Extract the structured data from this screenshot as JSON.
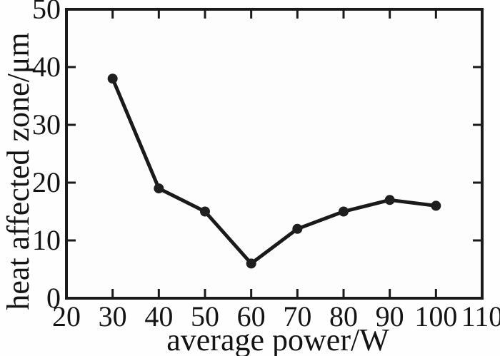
{
  "chart_data": {
    "type": "line",
    "series_name": "heat affected zone",
    "x": [
      30,
      40,
      50,
      60,
      70,
      80,
      90,
      100
    ],
    "values": [
      38,
      19,
      15,
      6,
      12,
      15,
      17,
      16
    ],
    "title": "",
    "xlabel": "average power/W",
    "ylabel": "heat affected zone/μm",
    "xlim": [
      20,
      110
    ],
    "ylim": [
      0,
      50
    ],
    "xticks": [
      20,
      30,
      40,
      50,
      60,
      70,
      80,
      90,
      100,
      110
    ],
    "yticks": [
      0,
      10,
      20,
      30,
      40,
      50
    ],
    "grid": false,
    "legend_position": "none",
    "line_color": "#1a1a1a",
    "marker_color": "#1f1f1f",
    "marker": "circle",
    "frame_color": "#1a1a1a",
    "plot_background": "#fdfdfd"
  }
}
